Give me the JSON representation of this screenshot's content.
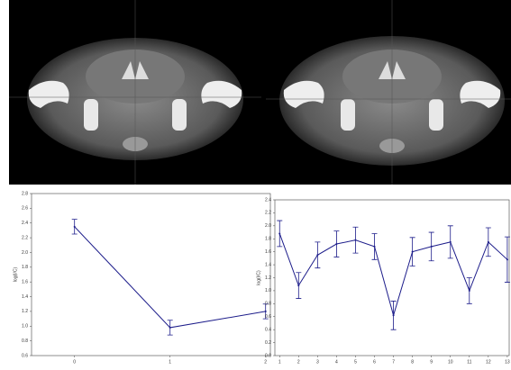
{
  "chart_data": [
    {
      "type": "line",
      "ylabel": "log(I/C)",
      "color": "#1c1c8a",
      "x": [
        0,
        1,
        2
      ],
      "values": [
        2.35,
        0.98,
        1.2
      ],
      "errors": [
        0.1,
        0.1,
        0.1
      ],
      "xlim": [
        -0.45,
        2.05
      ],
      "xticks": [
        0,
        1,
        2
      ],
      "ylim": [
        0.6,
        2.8
      ],
      "yticks": [
        0.6,
        0.8,
        {
          "value": 1,
          "label": "1.0"
        },
        1.2,
        1.4,
        1.6,
        1.8,
        {
          "value": 2,
          "label": "2.0"
        },
        2.2,
        2.4,
        2.6,
        2.8
      ]
    },
    {
      "type": "line",
      "ylabel": "log(I/C)",
      "color": "#1c1c8a",
      "x": [
        1,
        2,
        3,
        4,
        5,
        6,
        7,
        8,
        9,
        10,
        11,
        12,
        13
      ],
      "values": [
        1.88,
        1.08,
        1.55,
        1.72,
        1.78,
        1.68,
        0.62,
        1.6,
        1.68,
        1.75,
        1.0,
        1.75,
        1.48
      ],
      "errors": [
        0.2,
        0.2,
        0.2,
        0.2,
        0.2,
        0.2,
        0.22,
        0.22,
        0.22,
        0.25,
        0.2,
        0.22,
        0.35
      ],
      "xlim": [
        0.75,
        13.1
      ],
      "xticks": [
        1,
        2,
        3,
        4,
        5,
        6,
        7,
        8,
        9,
        10,
        11,
        12,
        13
      ],
      "ylim": [
        0,
        2.4
      ],
      "yticks": [
        {
          "value": 0,
          "label": "0.0"
        },
        0.2,
        0.4,
        0.6,
        0.8,
        {
          "value": 1,
          "label": "1.0"
        },
        1.2,
        1.4,
        1.6,
        1.8,
        {
          "value": 2,
          "label": "2.0"
        },
        2.2,
        2.4
      ]
    }
  ]
}
